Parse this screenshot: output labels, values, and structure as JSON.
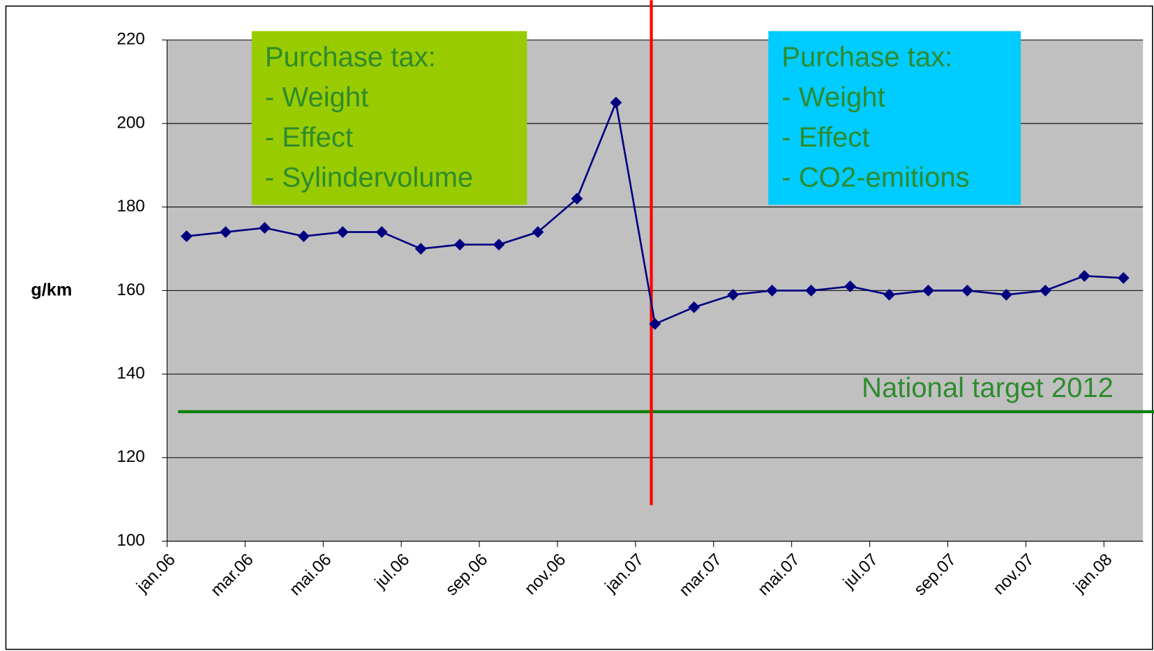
{
  "chart_data": {
    "type": "line",
    "y_label": "g/km",
    "categories": [
      "jan.06",
      null,
      "mar.06",
      null,
      "mai.06",
      null,
      "jul.06",
      null,
      "sep.06",
      null,
      "nov.06",
      null,
      "jan.07",
      null,
      "mar.07",
      null,
      "mai.07",
      null,
      "jul.07",
      null,
      "sep.07",
      null,
      "nov.07",
      null,
      "jan.08"
    ],
    "values": [
      173,
      174,
      175,
      173,
      174,
      174,
      170,
      171,
      171,
      174,
      182,
      205,
      152,
      156,
      159,
      160,
      160,
      161,
      159,
      160,
      160,
      159,
      160,
      163.5,
      163
    ],
    "color": "#000080",
    "ylim": [
      100,
      220
    ],
    "yticks": [
      100,
      120,
      140,
      160,
      180,
      200,
      220
    ],
    "grid": true,
    "target": {
      "value": 131,
      "label": "National target 2012",
      "color": "#008000"
    },
    "annotations": [
      {
        "lines": [
          "Purchase tax:",
          "- Weight",
          "- Effect",
          "- Sylindervolume"
        ],
        "color": "#99cc00"
      },
      {
        "lines": [
          "Purchase tax:",
          "- Weight",
          "- Effect",
          "- CO2-emitions"
        ],
        "color": "#00ccff"
      }
    ]
  }
}
